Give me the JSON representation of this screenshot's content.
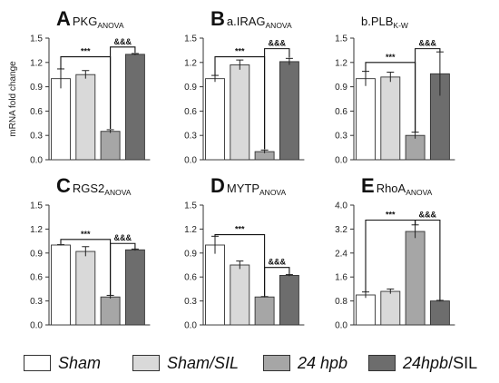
{
  "colors": {
    "sham": "#ffffff",
    "sham_sil": "#d9d9d9",
    "hpb24": "#a6a6a6",
    "hpb24_sil": "#6d6d6d",
    "edge": "#333333"
  },
  "legend": [
    {
      "label": "Sham",
      "color_key": "sham"
    },
    {
      "label": "Sham/SIL",
      "color_key": "sham_sil"
    },
    {
      "label": "24 hpb",
      "color_key": "hpb24"
    },
    {
      "label_italic": "24hpb",
      "label_plain": "/SIL",
      "color_key": "hpb24_sil"
    }
  ],
  "chart_data": [
    {
      "type": "bar",
      "panel_letter": "A",
      "title_main": "PKG",
      "title_sub": "ANOVA",
      "ylabel": "mRNA fold change",
      "ylim": [
        0,
        1.5
      ],
      "yticks": [
        "0.0",
        "0.3",
        "0.6",
        "0.9",
        "1.2",
        "1.5"
      ],
      "categories": [
        "Sham",
        "Sham/SIL",
        "24 hpb",
        "24hpb/SIL"
      ],
      "values": [
        1.0,
        1.05,
        0.35,
        1.3
      ],
      "errors": [
        0.12,
        0.05,
        0.02,
        0.01
      ],
      "annotations": [
        {
          "text": "***",
          "from": 0,
          "to": 2,
          "level": 1.27,
          "drop_from": 1.12,
          "drop_to": 0.38
        },
        {
          "text": "&&&",
          "from": 2,
          "to": 3,
          "level": 1.39,
          "drop_from": 0.38,
          "drop_to": 1.32
        }
      ]
    },
    {
      "type": "bar",
      "panel_letter": "B",
      "title_main": "a.IRAG",
      "title_sub": "ANOVA",
      "ylabel": "",
      "ylim": [
        0,
        1.5
      ],
      "yticks": [
        "0.0",
        "0.3",
        "0.6",
        "0.9",
        "1.2",
        "1.5"
      ],
      "categories": [
        "Sham",
        "Sham/SIL",
        "24 hpb",
        "24hpb/SIL"
      ],
      "values": [
        1.0,
        1.17,
        0.1,
        1.21
      ],
      "errors": [
        0.04,
        0.06,
        0.02,
        0.04
      ],
      "annotations": [
        {
          "text": "***",
          "from": 0,
          "to": 2,
          "level": 1.27,
          "drop_from": 1.04,
          "drop_to": 0.13
        },
        {
          "text": "&&&",
          "from": 2,
          "to": 3,
          "level": 1.37,
          "drop_from": 0.13,
          "drop_to": 1.26
        }
      ]
    },
    {
      "type": "bar",
      "panel_letter": "",
      "title_main": "b.PLB",
      "title_sub": "K-W",
      "ylabel": "",
      "ylim": [
        0,
        1.5
      ],
      "yticks": [
        "0.0",
        "0.3",
        "0.6",
        "0.9",
        "1.2",
        "1.5"
      ],
      "categories": [
        "Sham",
        "Sham/SIL",
        "24 hpb",
        "24hpb/SIL"
      ],
      "values": [
        1.0,
        1.02,
        0.3,
        1.06
      ],
      "errors": [
        0.09,
        0.06,
        0.04,
        0.27
      ],
      "annotations": [
        {
          "text": "***",
          "from": 0,
          "to": 2,
          "level": 1.2,
          "drop_from": 1.09,
          "drop_to": 0.34
        },
        {
          "text": "&&&",
          "from": 2,
          "to": 3,
          "level": 1.37,
          "drop_from": 0.34,
          "drop_to": 1.33
        }
      ]
    },
    {
      "type": "bar",
      "panel_letter": "C",
      "title_main": "RGS2",
      "title_sub": "ANOVA",
      "ylabel": "",
      "ylim": [
        0,
        1.5
      ],
      "yticks": [
        "0.0",
        "0.3",
        "0.6",
        "0.9",
        "1.2",
        "1.5"
      ],
      "categories": [
        "Sham",
        "Sham/SIL",
        "24 hpb",
        "24hpb/SIL"
      ],
      "values": [
        1.0,
        0.92,
        0.35,
        0.94
      ],
      "errors": [
        0.005,
        0.06,
        0.02,
        0.01
      ],
      "annotations": [
        {
          "text": "***",
          "from": 0,
          "to": 2,
          "level": 1.07,
          "drop_from": 1.01,
          "drop_to": 0.37
        },
        {
          "text": "&&&",
          "from": 2,
          "to": 3,
          "level": 1.02,
          "drop_from": 0.37,
          "drop_to": 0.95
        }
      ]
    },
    {
      "type": "bar",
      "panel_letter": "D",
      "title_main": "MYTP",
      "title_sub": "ANOVA",
      "ylabel": "",
      "ylim": [
        0,
        1.5
      ],
      "yticks": [
        "0.0",
        "0.3",
        "0.6",
        "0.9",
        "1.2",
        "1.5"
      ],
      "categories": [
        "Sham",
        "Sham/SIL",
        "24 hpb",
        "24hpb/SIL"
      ],
      "values": [
        1.0,
        0.75,
        0.35,
        0.62
      ],
      "errors": [
        0.11,
        0.05,
        0.005,
        0.01
      ],
      "annotations": [
        {
          "text": "***",
          "from": 0,
          "to": 2,
          "level": 1.13,
          "drop_from": 1.11,
          "drop_to": 0.36
        },
        {
          "text": "&&&",
          "from": 2,
          "to": 3,
          "level": 0.72,
          "drop_from": 0.36,
          "drop_to": 0.63
        }
      ]
    },
    {
      "type": "bar",
      "panel_letter": "E",
      "title_main": "RhoA",
      "title_sub": "ANOVA",
      "ylabel": "",
      "ylim": [
        0,
        4.0
      ],
      "yticks": [
        "0.0",
        "0.8",
        "1.6",
        "2.4",
        "3.2",
        "4.0"
      ],
      "categories": [
        "Sham",
        "Sham/SIL",
        "24 hpb",
        "24hpb/SIL"
      ],
      "values": [
        1.0,
        1.12,
        3.12,
        0.8
      ],
      "errors": [
        0.1,
        0.08,
        0.22,
        0.02
      ],
      "annotations": [
        {
          "text": "***",
          "from": 0,
          "to": 2,
          "level": 3.5,
          "drop_from": 1.1,
          "drop_to": 3.34
        },
        {
          "text": "&&&",
          "from": 2,
          "to": 3,
          "level": 3.5,
          "drop_from": 3.34,
          "drop_to": 0.82
        }
      ]
    }
  ]
}
